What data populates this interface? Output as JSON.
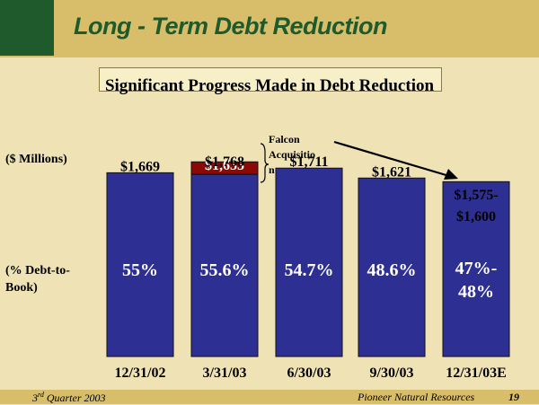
{
  "header": {
    "title": "Long - Term Debt Reduction",
    "subtitle": "Significant Progress Made in Debt Reduction"
  },
  "labels": {
    "units": "($ Millions)",
    "ratio_line1": "(% Debt-to-",
    "ratio_line2": "Book)"
  },
  "footer": {
    "quarter_prefix": "3",
    "quarter_sup": "rd",
    "quarter_suffix": " Quarter 2003",
    "company": "Pioneer Natural Resources",
    "page": "19"
  },
  "colors": {
    "bar": "#2e2f93",
    "acquisition": "#8b0a05",
    "header_green": "#1e5a2c",
    "background": "#efe3b6"
  },
  "chart_data": {
    "type": "bar",
    "categories": [
      "12/31/02",
      "3/31/03",
      "6/30/03",
      "9/30/03",
      "12/31/03E"
    ],
    "series": [
      {
        "values": [
          1669,
          1655,
          1711,
          1621,
          1588
        ]
      },
      {
        "name": "Falcon Acquisition",
        "values": [
          0,
          113,
          0,
          0,
          0
        ]
      }
    ],
    "value_labels": [
      "$1,669",
      "$1,655",
      "$1,711",
      "$1,621",
      "$1,575-$1,600"
    ],
    "total_labels": [
      "",
      "$1,768",
      "",
      "",
      ""
    ],
    "ratio_labels": [
      "55%",
      "55.6%",
      "54.7%",
      "48.6%",
      "47%-48%"
    ],
    "annotation": "Falcon Acquisition"
  }
}
